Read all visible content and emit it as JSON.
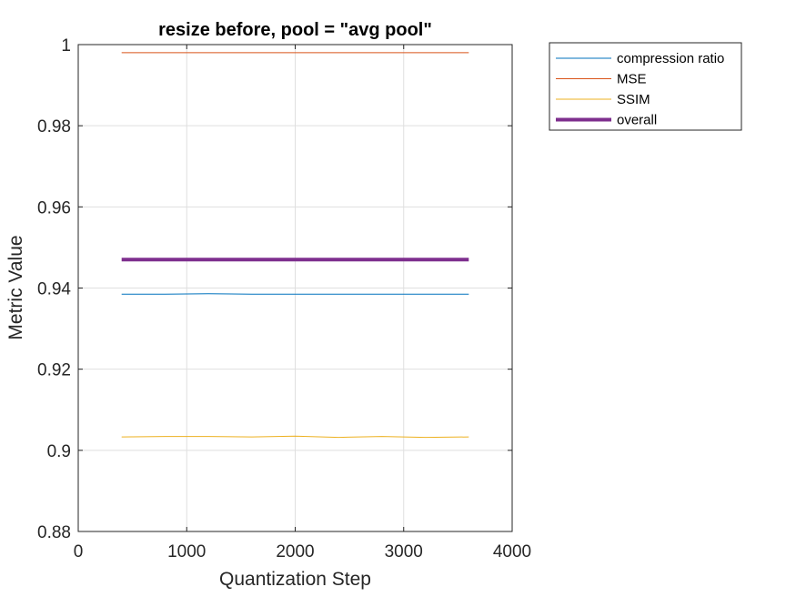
{
  "chart_data": {
    "type": "line",
    "title": "resize before, pool = \"avg pool\"",
    "xlabel": "Quantization Step",
    "ylabel": "Metric Value",
    "xlim": [
      0,
      4000
    ],
    "ylim": [
      0.88,
      1.0
    ],
    "xticks": [
      0,
      1000,
      2000,
      3000,
      4000
    ],
    "xtick_labels": [
      "0",
      "1000",
      "2000",
      "3000",
      "4000"
    ],
    "yticks": [
      0.88,
      0.9,
      0.92,
      0.94,
      0.96,
      0.98,
      1.0
    ],
    "ytick_labels": [
      "0.88",
      "0.9",
      "0.92",
      "0.94",
      "0.96",
      "0.98",
      "1"
    ],
    "grid": true,
    "legend_position": "outside-top-right",
    "x": [
      400,
      800,
      1200,
      1600,
      2000,
      2400,
      2800,
      3200,
      3600
    ],
    "series": [
      {
        "name": "compression ratio",
        "color": "#0072BD",
        "width": 1,
        "values": [
          0.9385,
          0.9385,
          0.9386,
          0.9385,
          0.9385,
          0.9385,
          0.9385,
          0.9385,
          0.9385
        ]
      },
      {
        "name": "MSE",
        "color": "#D95319",
        "width": 1,
        "values": [
          0.998,
          0.998,
          0.998,
          0.998,
          0.998,
          0.998,
          0.998,
          0.998,
          0.998
        ]
      },
      {
        "name": "SSIM",
        "color": "#EDB120",
        "width": 1,
        "values": [
          0.9033,
          0.9034,
          0.9034,
          0.9033,
          0.9035,
          0.9032,
          0.9034,
          0.9032,
          0.9033
        ]
      },
      {
        "name": "overall",
        "color": "#7E2F8E",
        "width": 4,
        "values": [
          0.947,
          0.947,
          0.947,
          0.947,
          0.947,
          0.947,
          0.947,
          0.947,
          0.947
        ]
      }
    ]
  }
}
